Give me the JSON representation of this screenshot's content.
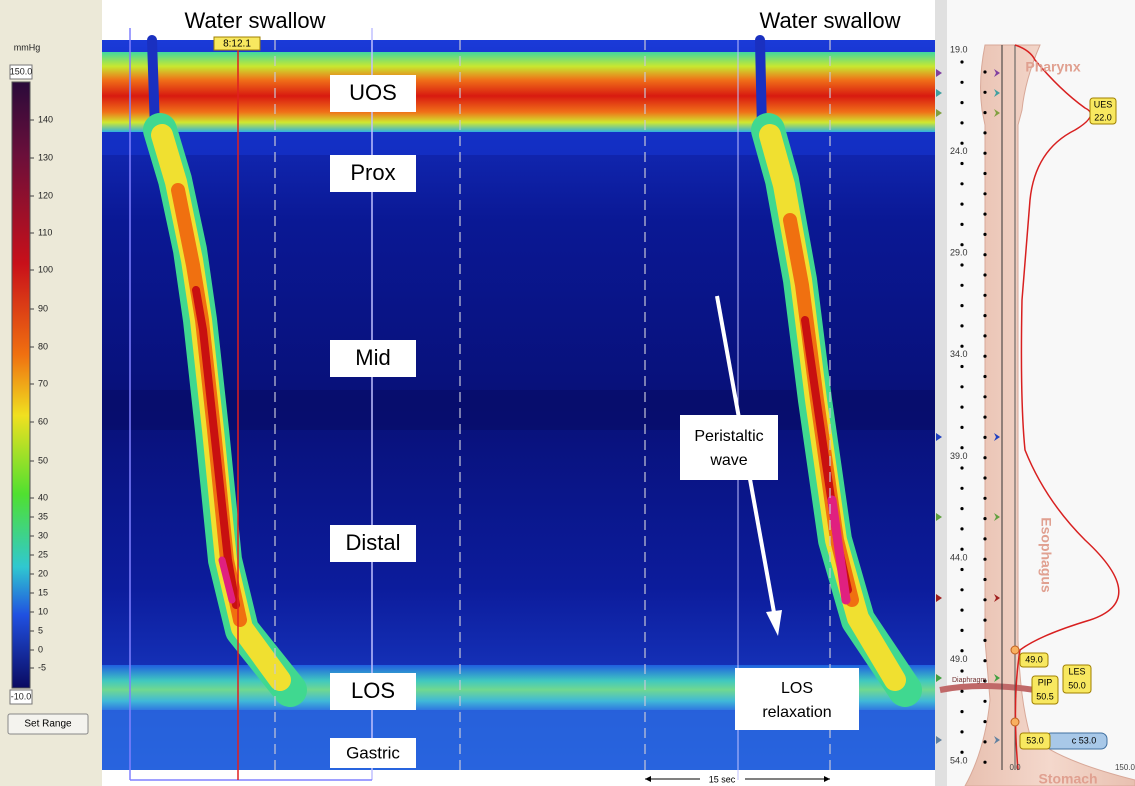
{
  "colorbar": {
    "unit": "mmHg",
    "max": "150.0",
    "min": "-10.0",
    "ticks": [
      "140",
      "130",
      "120",
      "110",
      "100",
      "90",
      "80",
      "70",
      "60",
      "50",
      "40",
      "35",
      "30",
      "25",
      "20",
      "15",
      "10",
      "5",
      "0",
      "-5"
    ],
    "button": "Set Range"
  },
  "plot": {
    "swallow_labels": [
      "Water swallow",
      "Water swallow"
    ],
    "cursor_time": "8:12.1",
    "regions": [
      "UOS",
      "Prox",
      "Mid",
      "Distal",
      "LOS",
      "Gastric"
    ],
    "peristaltic_label": [
      "Peristaltic",
      "wave"
    ],
    "relaxation_label": [
      "LOS",
      "relaxation"
    ],
    "scale_label": "15 sec"
  },
  "anatomy": {
    "depth_ticks": [
      "19.0",
      "24.0",
      "29.0",
      "34.0",
      "39.0",
      "44.0",
      "49.0",
      "54.0"
    ],
    "regions": [
      "Pharynx",
      "Esophagus",
      "Stomach"
    ],
    "markers": {
      "ues": [
        "UES",
        "22.0"
      ],
      "les": [
        "LES",
        "50.0"
      ],
      "pip": [
        "PIP",
        "50.5"
      ],
      "pos_49": "49.0",
      "pos_53": "53.0",
      "pos_53b": "c 53.0",
      "diaphragm": "Diaphragm"
    },
    "x_axis": [
      "0.0",
      "150.0"
    ]
  }
}
